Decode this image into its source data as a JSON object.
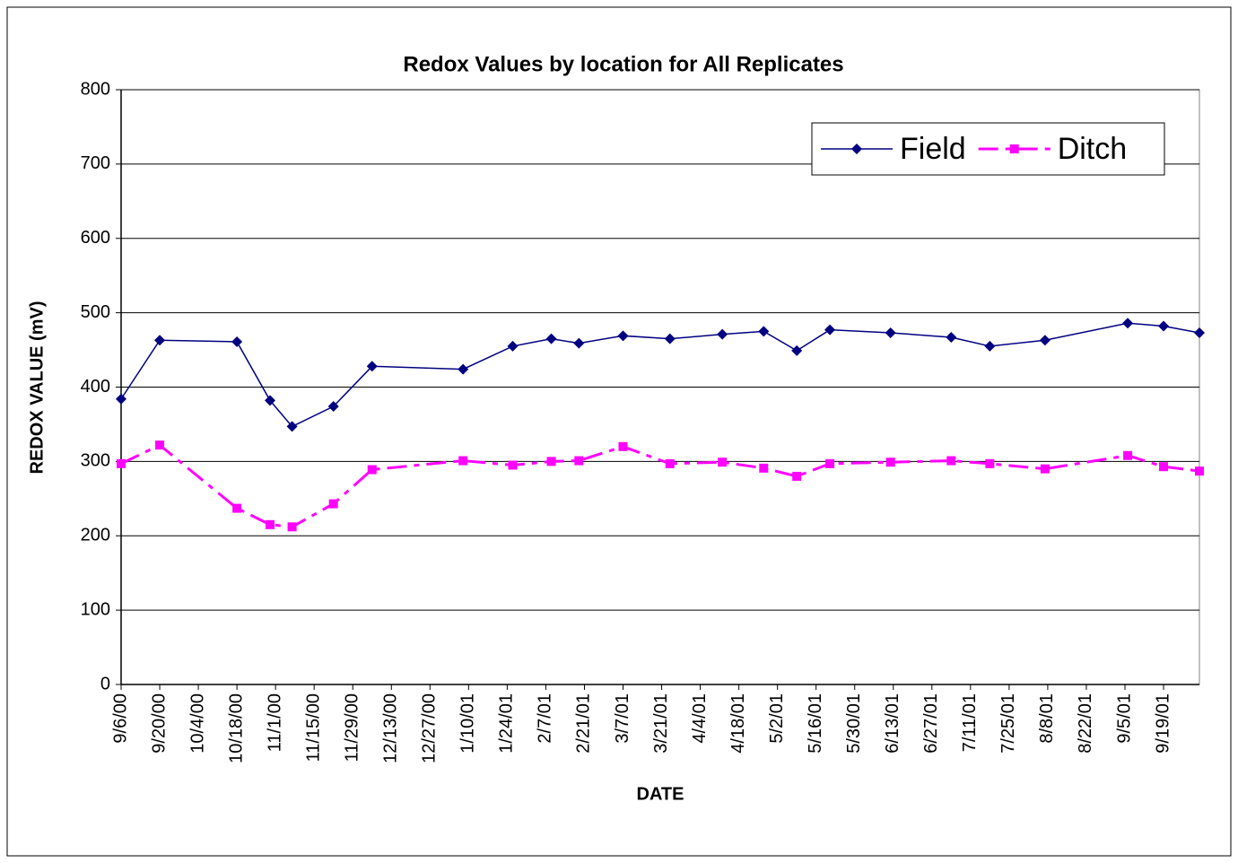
{
  "chart_data": {
    "type": "line",
    "title": "Redox Values by location for All Replicates",
    "x_label": "DATE",
    "y_label": "REDOX VALUE (mV)",
    "x": [
      "9/6/00",
      "9/20/00",
      "10/18/00",
      "10/30/00",
      "11/7/00",
      "11/22/00",
      "12/6/00",
      "1/8/01",
      "1/26/01",
      "2/9/01",
      "2/19/01",
      "3/7/01",
      "3/24/01",
      "4/12/01",
      "4/27/01",
      "5/9/01",
      "5/21/01",
      "6/12/01",
      "7/4/01",
      "7/18/01",
      "8/7/01",
      "9/6/01",
      "9/19/01",
      "10/2/01"
    ],
    "series": [
      {
        "name": "Field",
        "color": "#000080",
        "marker": "diamond",
        "dash": "solid",
        "values": [
          384,
          463,
          461,
          382,
          347,
          374,
          428,
          424,
          455,
          465,
          459,
          469,
          465,
          471,
          475,
          449,
          477,
          473,
          467,
          455,
          463,
          486,
          482,
          473
        ]
      },
      {
        "name": "Ditch",
        "color": "#ff00ff",
        "marker": "square",
        "dash": "dashdot",
        "values": [
          297,
          322,
          237,
          215,
          212,
          243,
          289,
          301,
          295,
          300,
          301,
          320,
          297,
          299,
          291,
          280,
          297,
          299,
          301,
          297,
          290,
          308,
          293,
          287
        ]
      }
    ],
    "xlim": [
      "9/6/00",
      "10/2/01"
    ],
    "xticks": [
      "9/6/00",
      "9/20/00",
      "10/4/00",
      "10/18/00",
      "11/1/00",
      "11/15/00",
      "11/29/00",
      "12/13/00",
      "12/27/00",
      "1/10/01",
      "1/24/01",
      "2/7/01",
      "2/21/01",
      "3/7/01",
      "3/21/01",
      "4/4/01",
      "4/18/01",
      "5/2/01",
      "5/16/01",
      "5/30/01",
      "6/13/01",
      "6/27/01",
      "7/11/01",
      "7/25/01",
      "8/8/01",
      "8/22/01",
      "9/5/01",
      "9/19/01"
    ],
    "ylim": [
      0,
      800
    ],
    "yticks": [
      0,
      100,
      200,
      300,
      400,
      500,
      600,
      700,
      800
    ],
    "grid": true,
    "legend": "top-right"
  }
}
